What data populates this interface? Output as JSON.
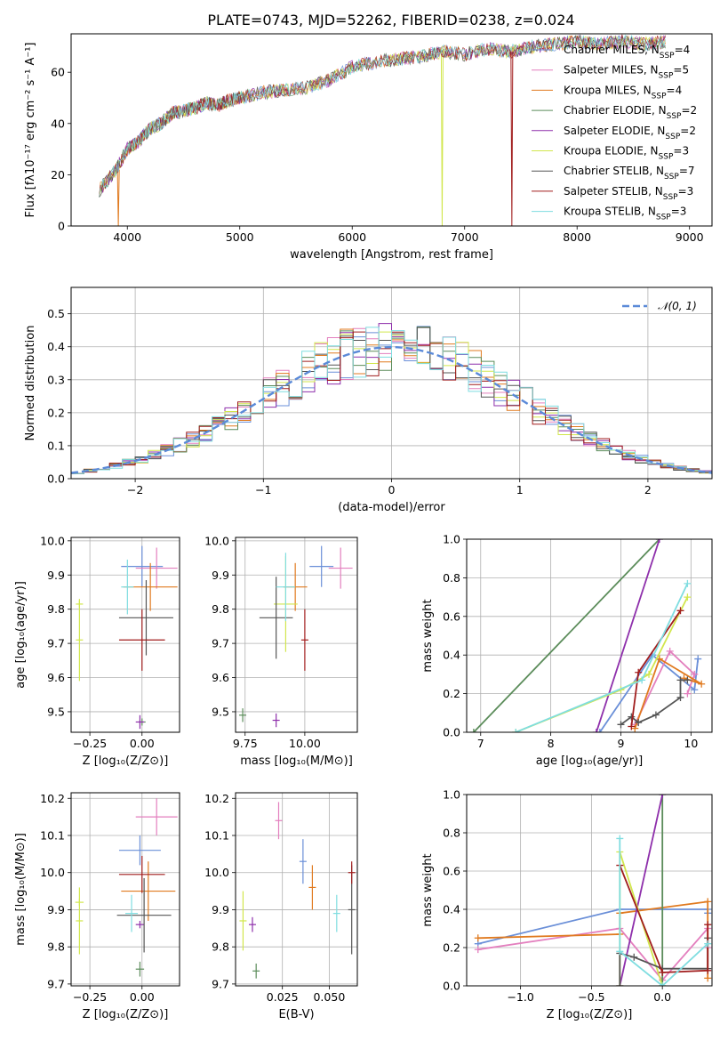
{
  "figure_title": "PLATE=0743, MJD=52262, FIBERID=0238, z=0.024",
  "series_colors": [
    "#6a8fd8",
    "#e37fbe",
    "#e07a1f",
    "#5b8c5a",
    "#8e2fab",
    "#d1e64c",
    "#555555",
    "#a11d1d",
    "#7fdde0"
  ],
  "chart_data": [
    {
      "id": "spectrum",
      "type": "line",
      "xlabel": "wavelength [Angstrom, rest frame]",
      "ylabel": "Flux [fλ10⁻¹⁷ erg cm⁻² s⁻¹ A⁻¹]",
      "xlim": [
        3500,
        9200
      ],
      "ylim": [
        0,
        75
      ],
      "xticks": [
        4000,
        5000,
        6000,
        7000,
        8000,
        9000
      ],
      "yticks": [
        0,
        20,
        40,
        60
      ],
      "legend_position": "upper-right",
      "grid": false,
      "legend": [
        "Chabrier MILES, N_SSP=4",
        "Salpeter MILES, N_SSP=5",
        "Kroupa MILES, N_SSP=4",
        "Chabrier ELODIE, N_SSP=2",
        "Salpeter ELODIE, N_SSP=2",
        "Kroupa ELODIE, N_SSP=3",
        "Chabrier STELIB, N_SSP=7",
        "Salpeter STELIB, N_SSP=3",
        "Kroupa STELIB, N_SSP=3"
      ],
      "x": [
        3750,
        3900,
        4000,
        4100,
        4200,
        4300,
        4400,
        4500,
        4600,
        4700,
        4800,
        4900,
        5000,
        5200,
        5400,
        5600,
        5800,
        6000,
        6200,
        6400,
        6600,
        6800,
        7000,
        7200,
        7400,
        7600,
        7800,
        8000,
        8200,
        8400,
        8600,
        8800
      ],
      "y": [
        14,
        22,
        30,
        33,
        38,
        40,
        44,
        45,
        46,
        48,
        47,
        49,
        50,
        52,
        53,
        54,
        57,
        62,
        64,
        65,
        66,
        68,
        67,
        69,
        68,
        70,
        71,
        72,
        71,
        72,
        71,
        72
      ],
      "dips": [
        {
          "series": 2,
          "x": 3920,
          "y": 0
        },
        {
          "series": 5,
          "x": 6800,
          "y": 0
        },
        {
          "series": 7,
          "x": 7420,
          "y": 0
        }
      ]
    },
    {
      "id": "residual_hist",
      "type": "histogram",
      "xlabel": "(data-model)/error",
      "ylabel": "Normed distribution",
      "xlim": [
        -2.5,
        2.5
      ],
      "ylim": [
        0,
        0.58
      ],
      "xticks": [
        -2,
        -1,
        0,
        1,
        2
      ],
      "yticks": [
        0.0,
        0.1,
        0.2,
        0.3,
        0.4,
        0.5
      ],
      "legend": [
        "𝒩(0, 1)"
      ],
      "legend_position": "upper-right",
      "grid": true,
      "bin_width": 0.1
    },
    {
      "id": "age_vs_Z",
      "type": "errorbar",
      "xlabel": "Z [log₁₀(Z/Z⊙)]",
      "ylabel": "age  [log₁₀(age/yr)]",
      "xlim": [
        -0.34,
        0.18
      ],
      "ylim": [
        9.44,
        10.01
      ],
      "xticks": [
        -0.25,
        0.0
      ],
      "xticklabels": [
        "−0.25",
        "0.00"
      ],
      "yticks": [
        9.5,
        9.6,
        9.7,
        9.8,
        9.9,
        10.0
      ],
      "grid": true,
      "points": [
        {
          "s": 0,
          "x": 0.0,
          "xe": 0.1,
          "y": 9.925,
          "ye": 0.06
        },
        {
          "s": 1,
          "x": 0.07,
          "xe": 0.1,
          "y": 9.92,
          "ye": 0.06
        },
        {
          "s": 2,
          "x": 0.04,
          "xe": 0.13,
          "y": 9.865,
          "ye": 0.07
        },
        {
          "s": 3,
          "x": 0.0,
          "xe": 0.0,
          "y": 9.47,
          "ye": 0.0
        },
        {
          "s": 4,
          "x": -0.01,
          "xe": 0.02,
          "y": 9.47,
          "ye": 0.02
        },
        {
          "s": 5,
          "x": -0.3,
          "xe": 0.01,
          "y": 9.815,
          "ye": 0.0
        },
        {
          "s": 5,
          "x": -0.3,
          "xe": 0.0,
          "y": 9.71,
          "ye": 0.12
        },
        {
          "s": 6,
          "x": 0.02,
          "xe": 0.13,
          "y": 9.775,
          "ye": 0.11
        },
        {
          "s": 7,
          "x": 0.0,
          "xe": 0.11,
          "y": 9.71,
          "ye": 0.09
        },
        {
          "s": 8,
          "x": -0.07,
          "xe": 0.03,
          "y": 9.865,
          "ye": 0.08
        }
      ]
    },
    {
      "id": "age_vs_mass",
      "type": "errorbar",
      "xlabel": "mass [log₁₀(M/M⊙)]",
      "ylabel": "",
      "xlim": [
        9.71,
        10.22
      ],
      "ylim": [
        9.44,
        10.01
      ],
      "xticks": [
        9.75,
        10.0
      ],
      "xticklabels": [
        "9.75",
        "10.00"
      ],
      "yticks": [
        9.5,
        9.6,
        9.7,
        9.8,
        9.9,
        10.0
      ],
      "grid": true,
      "points": [
        {
          "s": 0,
          "x": 10.07,
          "xe": 0.05,
          "y": 9.925,
          "ye": 0.06
        },
        {
          "s": 1,
          "x": 10.15,
          "xe": 0.05,
          "y": 9.92,
          "ye": 0.06
        },
        {
          "s": 2,
          "x": 9.96,
          "xe": 0.05,
          "y": 9.865,
          "ye": 0.07
        },
        {
          "s": 3,
          "x": 9.74,
          "xe": 0.0,
          "y": 9.49,
          "ye": 0.02
        },
        {
          "s": 4,
          "x": 9.88,
          "xe": 0.01,
          "y": 9.475,
          "ye": 0.02
        },
        {
          "s": 5,
          "x": 9.92,
          "xe": 0.05,
          "y": 9.815,
          "ye": 0.14
        },
        {
          "s": 6,
          "x": 9.88,
          "xe": 0.07,
          "y": 9.775,
          "ye": 0.12
        },
        {
          "s": 7,
          "x": 10.0,
          "xe": 0.01,
          "y": 9.71,
          "ye": 0.09
        },
        {
          "s": 8,
          "x": 9.92,
          "xe": 0.04,
          "y": 9.865,
          "ye": 0.1
        }
      ]
    },
    {
      "id": "weight_vs_age",
      "type": "line",
      "xlabel": "age  [log₁₀(age/yr)]",
      "ylabel": "mass weight",
      "xlim": [
        6.8,
        10.3
      ],
      "ylim": [
        0,
        1
      ],
      "xticks": [
        7,
        8,
        9,
        10
      ],
      "yticks": [
        0.0,
        0.2,
        0.4,
        0.6,
        0.8,
        1.0
      ],
      "grid": true,
      "series": [
        {
          "s": 0,
          "x": [
            8.7,
            9.45,
            10.05,
            10.1
          ],
          "y": [
            0.0,
            0.4,
            0.22,
            0.38
          ]
        },
        {
          "s": 1,
          "x": [
            9.2,
            9.7,
            10.05,
            9.95
          ],
          "y": [
            0.04,
            0.42,
            0.3,
            0.2
          ]
        },
        {
          "s": 2,
          "x": [
            9.2,
            9.55,
            10.15,
            9.9
          ],
          "y": [
            0.02,
            0.38,
            0.25,
            0.28
          ]
        },
        {
          "s": 3,
          "x": [
            6.9,
            9.55
          ],
          "y": [
            0.0,
            1.0
          ]
        },
        {
          "s": 4,
          "x": [
            8.65,
            9.55
          ],
          "y": [
            0.0,
            1.0
          ]
        },
        {
          "s": 5,
          "x": [
            7.5,
            9.0,
            9.4,
            9.95
          ],
          "y": [
            0.0,
            0.22,
            0.3,
            0.7
          ]
        },
        {
          "s": 6,
          "x": [
            9.0,
            9.15,
            9.25,
            9.5,
            9.85,
            9.85,
            9.95
          ],
          "y": [
            0.04,
            0.08,
            0.05,
            0.09,
            0.18,
            0.27,
            0.27
          ]
        },
        {
          "s": 7,
          "x": [
            9.15,
            9.25,
            9.85
          ],
          "y": [
            0.03,
            0.31,
            0.63
          ]
        },
        {
          "s": 8,
          "x": [
            7.5,
            9.3,
            9.95
          ],
          "y": [
            0.0,
            0.27,
            0.77
          ]
        }
      ]
    },
    {
      "id": "mass_vs_Z",
      "type": "errorbar",
      "xlabel": "Z [log₁₀(Z/Z⊙)]",
      "ylabel": "mass [log₁₀(M/M⊙)]",
      "xlim": [
        -0.34,
        0.18
      ],
      "ylim": [
        9.695,
        10.215
      ],
      "xticks": [
        -0.25,
        0.0
      ],
      "xticklabels": [
        "−0.25",
        "0.00"
      ],
      "yticks": [
        9.7,
        9.8,
        9.9,
        10.0,
        10.1,
        10.2
      ],
      "grid": true,
      "points": [
        {
          "s": 0,
          "x": -0.01,
          "xe": 0.1,
          "y": 10.06,
          "ye": 0.04
        },
        {
          "s": 1,
          "x": 0.07,
          "xe": 0.1,
          "y": 10.15,
          "ye": 0.05
        },
        {
          "s": 2,
          "x": 0.03,
          "xe": 0.13,
          "y": 9.95,
          "ye": 0.08
        },
        {
          "s": 3,
          "x": -0.01,
          "xe": 0.02,
          "y": 9.74,
          "ye": 0.02
        },
        {
          "s": 4,
          "x": -0.01,
          "xe": 0.02,
          "y": 9.86,
          "ye": 0.01
        },
        {
          "s": 5,
          "x": -0.3,
          "xe": 0.02,
          "y": 9.92,
          "ye": 0.0
        },
        {
          "s": 5,
          "x": -0.3,
          "xe": 0.0,
          "y": 9.87,
          "ye": 0.09
        },
        {
          "s": 6,
          "x": 0.01,
          "xe": 0.13,
          "y": 9.885,
          "ye": 0.1
        },
        {
          "s": 7,
          "x": 0.0,
          "xe": 0.11,
          "y": 9.995,
          "ye": 0.05
        },
        {
          "s": 8,
          "x": -0.05,
          "xe": 0.03,
          "y": 9.89,
          "ye": 0.05
        }
      ]
    },
    {
      "id": "mass_vs_ebv",
      "type": "errorbar",
      "xlabel": "E(B-V)",
      "ylabel": "",
      "xlim": [
        0.0,
        0.065
      ],
      "ylim": [
        9.695,
        10.215
      ],
      "xticks": [
        0.025,
        0.05
      ],
      "xticklabels": [
        "0.025",
        "0.050"
      ],
      "yticks": [
        9.7,
        9.8,
        9.9,
        10.0,
        10.1,
        10.2
      ],
      "grid": true,
      "points": [
        {
          "s": 0,
          "x": 0.036,
          "xe": 0.0,
          "y": 10.03,
          "ye": 0.06
        },
        {
          "s": 1,
          "x": 0.023,
          "xe": 0.0,
          "y": 10.14,
          "ye": 0.05
        },
        {
          "s": 2,
          "x": 0.041,
          "xe": 0.0,
          "y": 9.96,
          "ye": 0.06
        },
        {
          "s": 3,
          "x": 0.011,
          "xe": 0.0,
          "y": 9.735,
          "ye": 0.02
        },
        {
          "s": 4,
          "x": 0.009,
          "xe": 0.0,
          "y": 9.86,
          "ye": 0.02
        },
        {
          "s": 5,
          "x": 0.004,
          "xe": 0.0,
          "y": 9.87,
          "ye": 0.08
        },
        {
          "s": 6,
          "x": 0.062,
          "xe": 0.0,
          "y": 9.9,
          "ye": 0.12
        },
        {
          "s": 7,
          "x": 0.062,
          "xe": 0.0,
          "y": 10.0,
          "ye": 0.03
        },
        {
          "s": 8,
          "x": 0.054,
          "xe": 0.0,
          "y": 9.89,
          "ye": 0.05
        }
      ]
    },
    {
      "id": "weight_vs_Z",
      "type": "line",
      "xlabel": "Z [log₁₀(Z/Z⊙)]",
      "ylabel": "mass weight",
      "xlim": [
        -1.38,
        0.35
      ],
      "ylim": [
        0,
        1
      ],
      "xticks": [
        -1.0,
        -0.5,
        0.0
      ],
      "xticklabels": [
        "−1.0",
        "−0.5",
        "0.0"
      ],
      "yticks": [
        0.0,
        0.2,
        0.4,
        0.6,
        0.8,
        1.0
      ],
      "grid": true,
      "series": [
        {
          "s": 0,
          "x": [
            -1.3,
            -0.3,
            0.32,
            0.32
          ],
          "y": [
            0.22,
            0.4,
            0.4,
            0.38
          ]
        },
        {
          "s": 1,
          "x": [
            -1.3,
            -0.3,
            0.0,
            0.32,
            0.32
          ],
          "y": [
            0.19,
            0.3,
            0.03,
            0.3,
            0.2
          ]
        },
        {
          "s": 2,
          "x": [
            -1.3,
            -0.3,
            -0.3,
            0.32,
            0.32
          ],
          "y": [
            0.25,
            0.27,
            0.38,
            0.44,
            0.04
          ]
        },
        {
          "s": 3,
          "x": [
            0.0,
            0.0
          ],
          "y": [
            0.0,
            1.0
          ]
        },
        {
          "s": 4,
          "x": [
            -0.3,
            0.0
          ],
          "y": [
            0.0,
            1.0
          ]
        },
        {
          "s": 5,
          "x": [
            -0.3,
            -0.3,
            0.0
          ],
          "y": [
            0.0,
            0.7,
            0.0
          ]
        },
        {
          "s": 6,
          "x": [
            -0.3,
            -0.3,
            -0.2,
            0.0,
            0.32,
            0.32
          ],
          "y": [
            0.0,
            0.17,
            0.15,
            0.09,
            0.09,
            0.25
          ]
        },
        {
          "s": 7,
          "x": [
            -0.3,
            0.0,
            0.32,
            0.32
          ],
          "y": [
            0.63,
            0.07,
            0.08,
            0.32
          ]
        },
        {
          "s": 8,
          "x": [
            -0.3,
            -0.3,
            0.0,
            0.32
          ],
          "y": [
            0.77,
            0.18,
            0.0,
            0.22
          ]
        }
      ]
    }
  ]
}
